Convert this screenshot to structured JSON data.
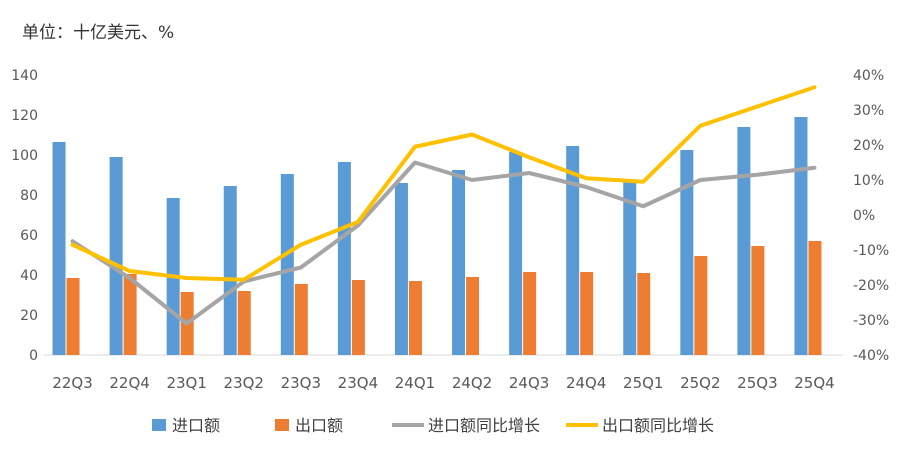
{
  "chart_data": {
    "type": "bar",
    "unit_label": "单位：十亿美元、%",
    "categories": [
      "22Q3",
      "22Q4",
      "23Q1",
      "23Q2",
      "23Q3",
      "23Q4",
      "24Q1",
      "24Q2",
      "24Q3",
      "24Q4",
      "25Q1",
      "25Q2",
      "25Q3",
      "25Q4"
    ],
    "ylim_left": [
      0,
      140
    ],
    "yticks_left": [
      "0",
      "20",
      "40",
      "60",
      "80",
      "100",
      "120",
      "140"
    ],
    "ylim_right": [
      -40,
      40
    ],
    "yticks_right": [
      "-40%",
      "-30%",
      "-20%",
      "-10%",
      "0%",
      "10%",
      "20%",
      "30%",
      "40%"
    ],
    "grid": false,
    "legend_position": "bottom",
    "series": [
      {
        "name": "进口额",
        "type": "bar",
        "axis": "left",
        "color": "#5B9BD5",
        "values": [
          106.5,
          99,
          78.5,
          84.5,
          90.5,
          96.5,
          86,
          92.5,
          101.5,
          104.5,
          87.5,
          102.5,
          114,
          119
        ]
      },
      {
        "name": "出口额",
        "type": "bar",
        "axis": "left",
        "color": "#ED7D31",
        "values": [
          38.5,
          40.5,
          31.5,
          32,
          35.5,
          37.5,
          37,
          39,
          41.5,
          41.5,
          41,
          49.5,
          54.5,
          57
        ]
      },
      {
        "name": "进口额同比增长",
        "type": "line",
        "axis": "right",
        "color": "#A5A5A5",
        "values": [
          -7.5,
          -18,
          -31,
          -19,
          -15,
          -3,
          15,
          10,
          12,
          8,
          2.5,
          10,
          11.5,
          13.5
        ]
      },
      {
        "name": "出口额同比增长",
        "type": "line",
        "axis": "right",
        "color": "#FFC000",
        "values": [
          -8.5,
          -16,
          -18,
          -18.5,
          -8.5,
          -2,
          19.5,
          23,
          16.5,
          10.5,
          9.5,
          25.5,
          31,
          36.5
        ]
      }
    ]
  }
}
